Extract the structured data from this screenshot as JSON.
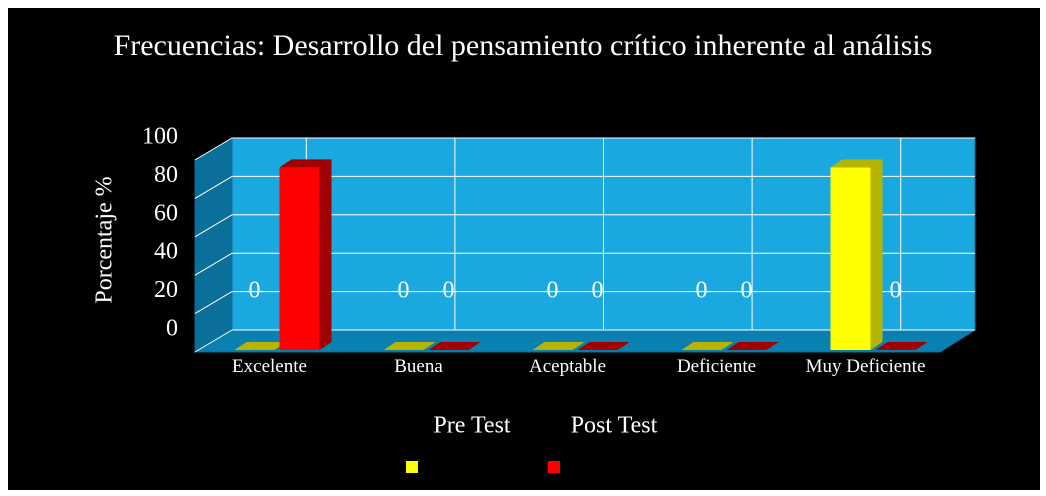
{
  "chart_data": {
    "type": "bar3d",
    "title": "Frecuencias: Desarrollo del pensamiento crítico inherente al análisis",
    "ylabel": "Porcentaje %",
    "categories": [
      "Excelente",
      "Buena",
      "Aceptable",
      "Deficiente",
      "Muy Deficiente"
    ],
    "series": [
      {
        "name": "Pre Test",
        "color": "#ffff00",
        "values": [
          0,
          0,
          0,
          0,
          83
        ],
        "value_labels": [
          "0",
          "0",
          "0",
          "0",
          null
        ]
      },
      {
        "name": "Post Test",
        "color": "#ff0000",
        "values": [
          83,
          0,
          0,
          0,
          0
        ],
        "value_labels": [
          null,
          "0",
          "0",
          "0",
          "0"
        ]
      }
    ],
    "ylim": [
      0,
      100
    ],
    "yticks": [
      0,
      20,
      40,
      60,
      80,
      100
    ],
    "grid": true,
    "legend": "bottom"
  }
}
